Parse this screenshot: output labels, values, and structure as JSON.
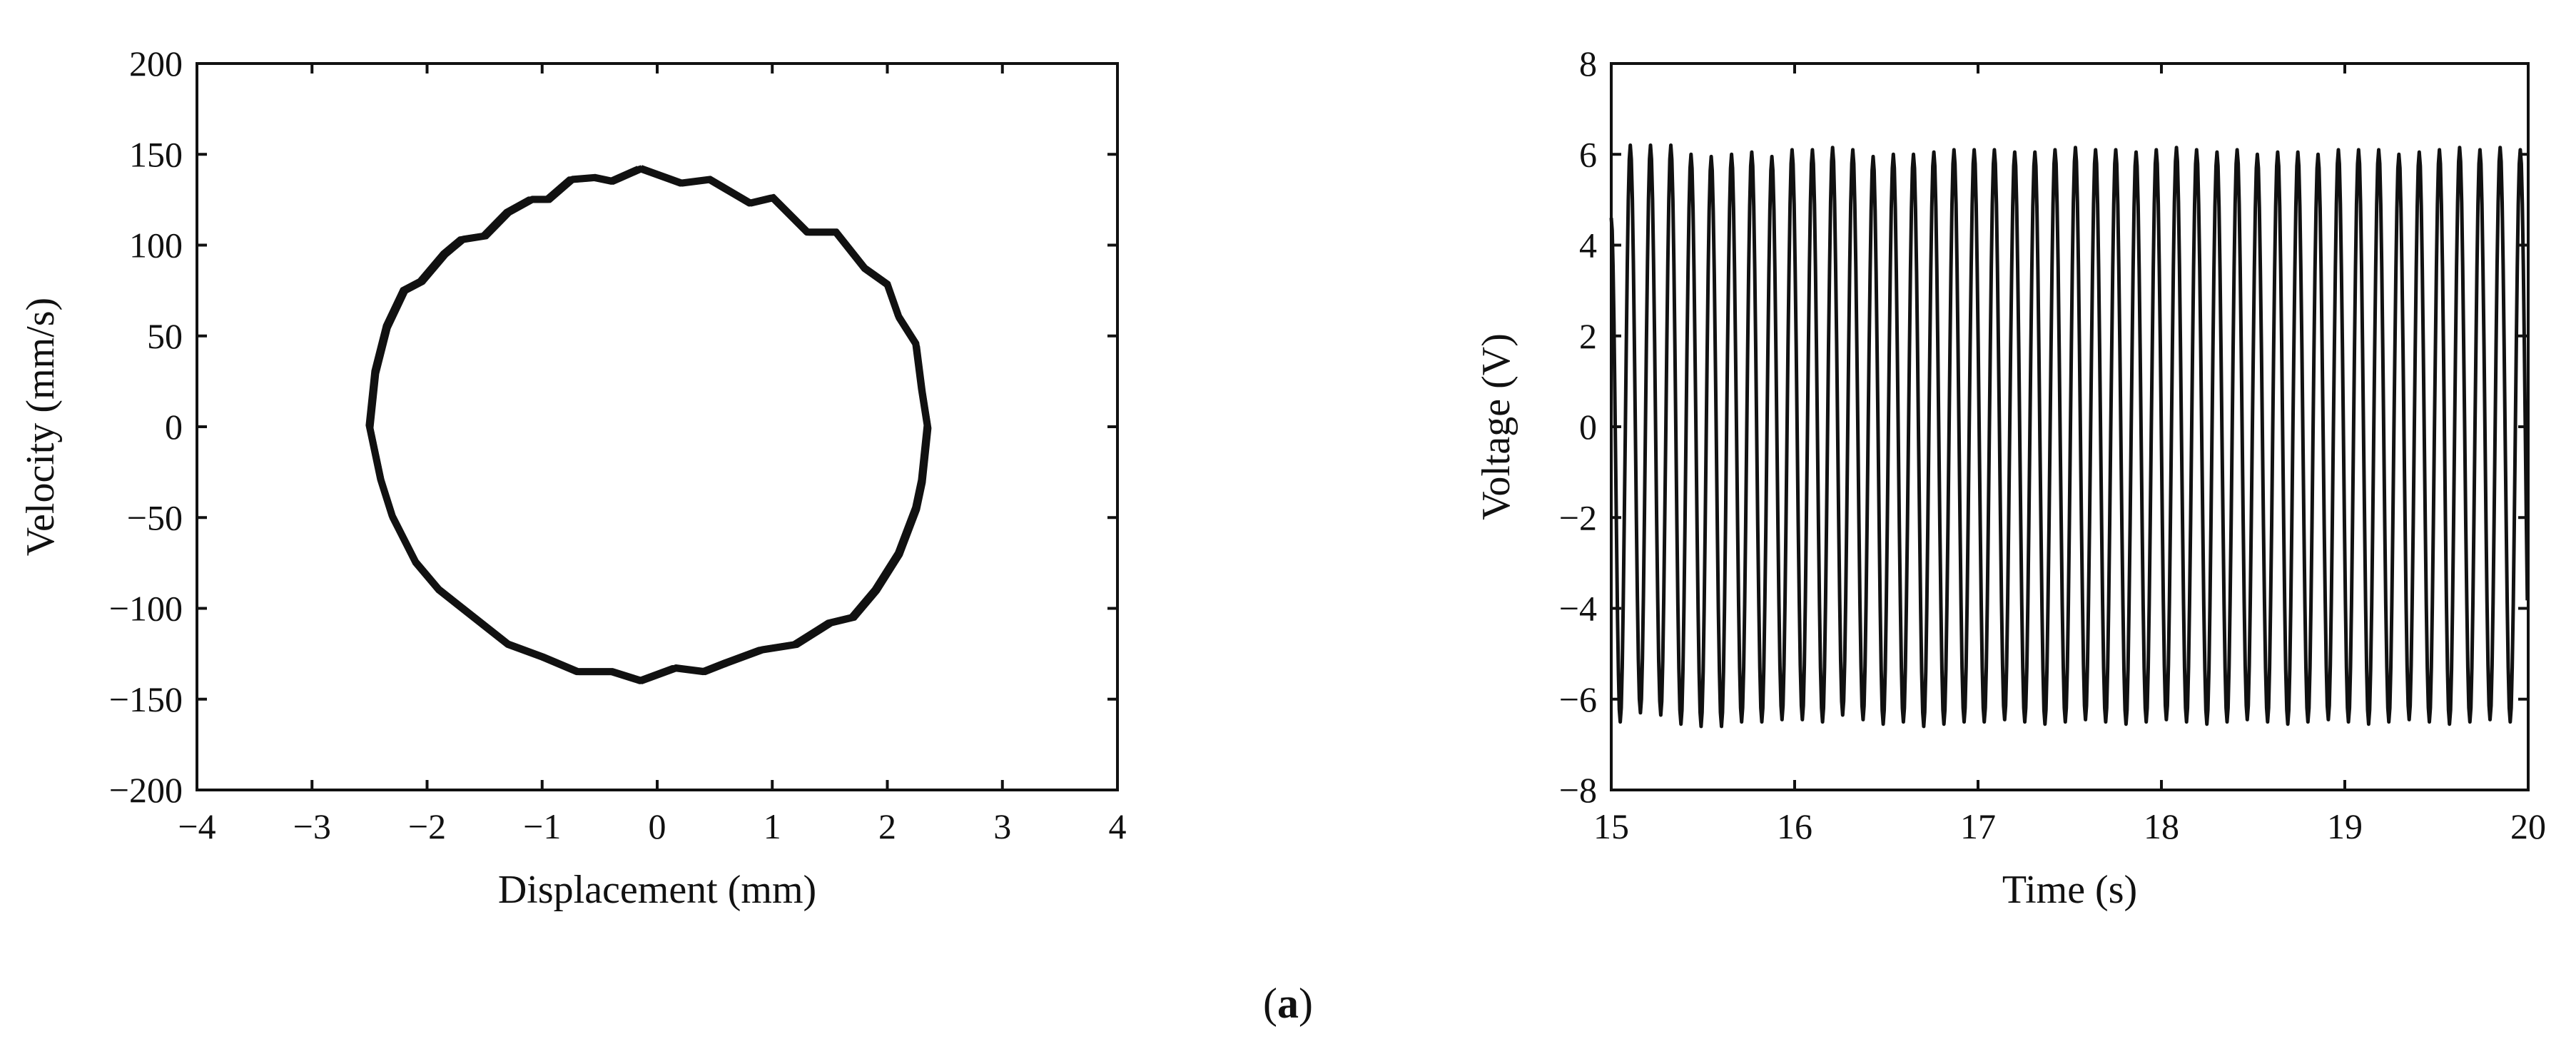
{
  "caption": {
    "open": "(",
    "letter": "a",
    "close": ")"
  },
  "chart_data": [
    {
      "type": "line",
      "xlabel": "Displacement (mm)",
      "ylabel": "Velocity (mm/s)",
      "xlim": [
        -4,
        4
      ],
      "ylim": [
        -200,
        200
      ],
      "xticks": [
        -4,
        -3,
        -2,
        -1,
        0,
        1,
        2,
        3,
        4
      ],
      "yticks": [
        -200,
        -150,
        -100,
        -50,
        0,
        50,
        100,
        150,
        200
      ],
      "grid": false,
      "color": "#111111",
      "points": [
        [
          -0.15,
          142
        ],
        [
          0.2,
          134
        ],
        [
          0.45,
          136
        ],
        [
          0.8,
          123
        ],
        [
          1.0,
          126
        ],
        [
          1.3,
          107
        ],
        [
          1.55,
          107
        ],
        [
          1.8,
          87
        ],
        [
          2.0,
          78
        ],
        [
          2.1,
          60
        ],
        [
          2.25,
          45
        ],
        [
          2.3,
          20
        ],
        [
          2.35,
          0
        ],
        [
          2.3,
          -30
        ],
        [
          2.25,
          -45
        ],
        [
          2.1,
          -70
        ],
        [
          1.9,
          -90
        ],
        [
          1.7,
          -105
        ],
        [
          1.5,
          -108
        ],
        [
          1.2,
          -120
        ],
        [
          0.9,
          -123
        ],
        [
          0.6,
          -130
        ],
        [
          0.4,
          -135
        ],
        [
          0.15,
          -133
        ],
        [
          -0.15,
          -140
        ],
        [
          -0.4,
          -135
        ],
        [
          -0.7,
          -135
        ],
        [
          -1.0,
          -127
        ],
        [
          -1.3,
          -120
        ],
        [
          -1.6,
          -105
        ],
        [
          -1.9,
          -90
        ],
        [
          -2.1,
          -75
        ],
        [
          -2.3,
          -50
        ],
        [
          -2.4,
          -30
        ],
        [
          -2.5,
          0
        ],
        [
          -2.45,
          30
        ],
        [
          -2.35,
          55
        ],
        [
          -2.2,
          75
        ],
        [
          -2.05,
          80
        ],
        [
          -1.85,
          95
        ],
        [
          -1.7,
          103
        ],
        [
          -1.5,
          105
        ],
        [
          -1.3,
          118
        ],
        [
          -1.1,
          125
        ],
        [
          -0.95,
          125
        ],
        [
          -0.75,
          136
        ],
        [
          -0.55,
          137
        ],
        [
          -0.4,
          135
        ],
        [
          -0.15,
          142
        ]
      ]
    },
    {
      "type": "line",
      "xlabel": "Time (s)",
      "ylabel": "Voltage (V)",
      "xlim": [
        15,
        20
      ],
      "ylim": [
        -8,
        8
      ],
      "xticks": [
        15,
        16,
        17,
        18,
        19,
        20
      ],
      "yticks": [
        -8,
        -6,
        -4,
        -2,
        0,
        2,
        4,
        6,
        8
      ],
      "grid": false,
      "color": "#111111",
      "start": [
        15.0,
        4.6
      ],
      "peaks": {
        "t": [
          15.104,
          15.214,
          15.325,
          15.435,
          15.545,
          15.656,
          15.766,
          15.876,
          15.986,
          16.097,
          16.207,
          16.317,
          16.428,
          16.538,
          16.648,
          16.759,
          16.869,
          16.979,
          17.089,
          17.2,
          17.31,
          17.42,
          17.531,
          17.641,
          17.751,
          17.862,
          17.972,
          18.082,
          18.192,
          18.303,
          18.413,
          18.523,
          18.634,
          18.744,
          18.854,
          18.965,
          19.075,
          19.185,
          19.295,
          19.406,
          19.516,
          19.626,
          19.737,
          19.847,
          19.957
        ],
        "v": [
          6.2,
          6.2,
          6.2,
          6.0,
          5.95,
          6.0,
          6.05,
          5.95,
          6.1,
          6.1,
          6.15,
          6.1,
          5.95,
          6.0,
          6.0,
          6.05,
          6.1,
          6.1,
          6.1,
          6.05,
          6.05,
          6.1,
          6.15,
          6.1,
          6.1,
          6.05,
          6.1,
          6.15,
          6.1,
          6.05,
          6.1,
          6.0,
          6.05,
          6.05,
          6.0,
          6.1,
          6.1,
          6.1,
          6.0,
          6.05,
          6.1,
          6.15,
          6.1,
          6.15,
          6.1
        ]
      },
      "troughs": {
        "t": [
          15.049,
          15.159,
          15.27,
          15.38,
          15.49,
          15.601,
          15.711,
          15.821,
          15.931,
          16.042,
          16.152,
          16.262,
          16.373,
          16.483,
          16.593,
          16.704,
          16.814,
          16.924,
          17.034,
          17.145,
          17.255,
          17.365,
          17.476,
          17.586,
          17.696,
          17.807,
          17.917,
          18.027,
          18.137,
          18.248,
          18.358,
          18.468,
          18.579,
          18.689,
          18.799,
          18.91,
          19.02,
          19.13,
          19.24,
          19.351,
          19.461,
          19.571,
          19.682,
          19.792,
          19.902,
          20.012
        ],
        "v": [
          -6.5,
          -6.3,
          -6.35,
          -6.55,
          -6.6,
          -6.6,
          -6.5,
          -6.5,
          -6.45,
          -6.45,
          -6.5,
          -6.35,
          -6.45,
          -6.55,
          -6.5,
          -6.6,
          -6.55,
          -6.5,
          -6.5,
          -6.45,
          -6.5,
          -6.55,
          -6.5,
          -6.45,
          -6.5,
          -6.55,
          -6.5,
          -6.45,
          -6.5,
          -6.55,
          -6.5,
          -6.45,
          -6.5,
          -6.55,
          -6.5,
          -6.45,
          -6.5,
          -6.55,
          -6.5,
          -6.45,
          -6.5,
          -6.55,
          -6.5,
          -6.45,
          -6.5,
          -6.4
        ]
      }
    }
  ]
}
